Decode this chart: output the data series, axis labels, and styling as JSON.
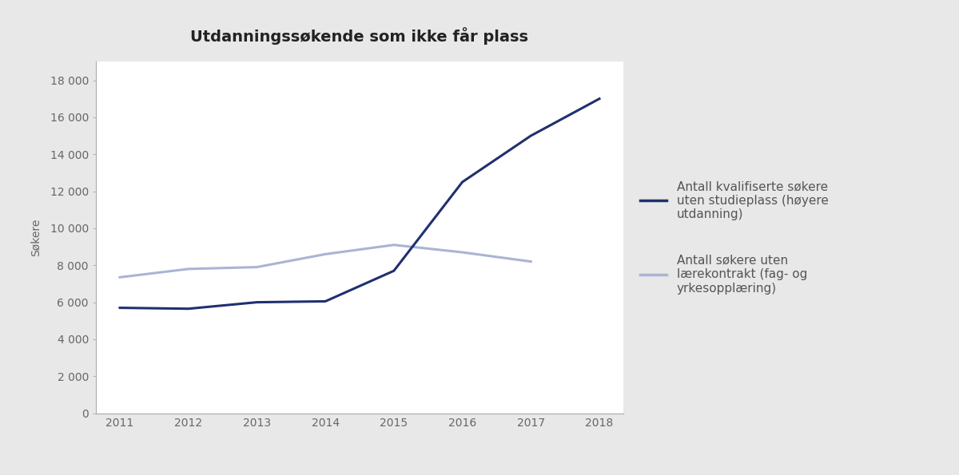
{
  "title": "Utdanningssøkende som ikke får plass",
  "years": [
    2011,
    2012,
    2013,
    2014,
    2015,
    2016,
    2017,
    2018
  ],
  "series1_values": [
    5700,
    5650,
    6000,
    6050,
    7700,
    12500,
    15000,
    17000
  ],
  "series2_values": [
    7350,
    7800,
    7900,
    8600,
    9100,
    8700,
    8200,
    null
  ],
  "series1_color": "#1f3070",
  "series2_color": "#aab4d4",
  "ylabel": "Søkere",
  "ylim": [
    0,
    19000
  ],
  "yticks": [
    0,
    2000,
    4000,
    6000,
    8000,
    10000,
    12000,
    14000,
    16000,
    18000
  ],
  "ytick_labels": [
    "0",
    "2 000",
    "4 000",
    "6 000",
    "8 000",
    "10 000",
    "12 000",
    "14 000",
    "16 000",
    "18 000"
  ],
  "legend1": "Antall kvalifiserte søkere\nuten studieplass (høyere\nutdanning)",
  "legend2": "Antall søkere uten\nlærekontrakt (fag- og\nyrkesopplæring)",
  "outer_background": "#e8e8e8",
  "plot_background": "#ffffff",
  "spine_color": "#aaaaaa",
  "tick_color": "#888888",
  "label_color": "#666666",
  "title_color": "#222222",
  "legend_color": "#555555",
  "linewidth": 2.2,
  "title_fontsize": 14,
  "tick_fontsize": 10,
  "ylabel_fontsize": 10,
  "legend_fontsize": 11
}
